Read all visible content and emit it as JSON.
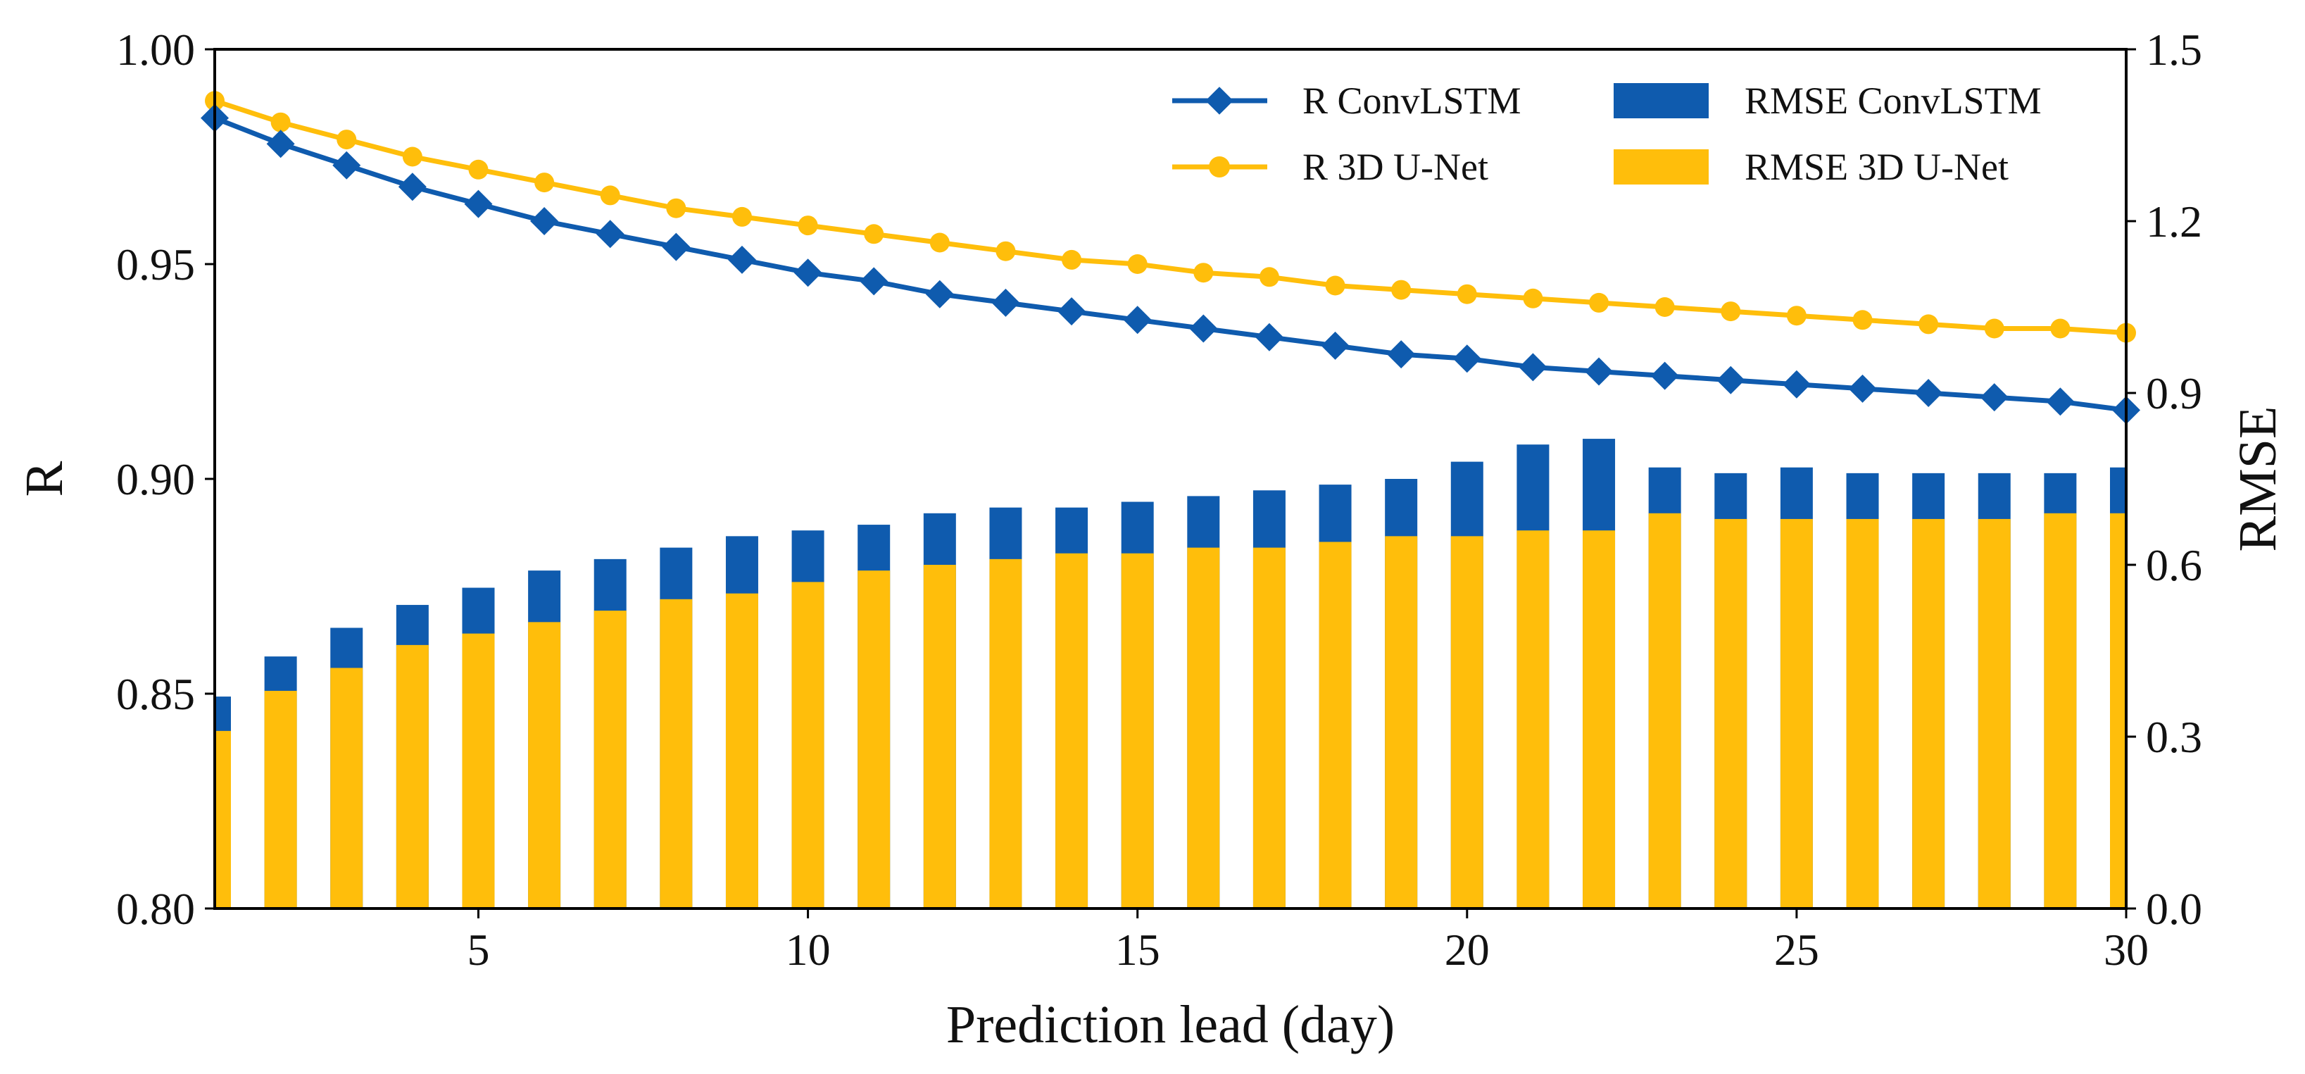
{
  "chart_data": {
    "type": "bar+line",
    "title": "",
    "xlabel": "Prediction lead (day)",
    "ylabel_left": "R",
    "ylabel_right": "RMSE",
    "x": [
      1,
      2,
      3,
      4,
      5,
      6,
      7,
      8,
      9,
      10,
      11,
      12,
      13,
      14,
      15,
      16,
      17,
      18,
      19,
      20,
      21,
      22,
      23,
      24,
      25,
      26,
      27,
      28,
      29,
      30
    ],
    "xlim": [
      1,
      30
    ],
    "xticks": [
      5,
      10,
      15,
      20,
      25,
      30
    ],
    "ylim_left": [
      0.8,
      1.0
    ],
    "yticks_left": [
      0.8,
      0.85,
      0.9,
      0.95,
      1.0
    ],
    "ytick_labels_left": [
      "0.80",
      "0.85",
      "0.90",
      "0.95",
      "1.00"
    ],
    "ylim_right": [
      0.0,
      1.5
    ],
    "yticks_right": [
      0.0,
      0.3,
      0.6,
      0.9,
      1.2,
      1.5
    ],
    "ytick_labels_right": [
      "0.0",
      "0.3",
      "0.6",
      "0.9",
      "1.2",
      "1.5"
    ],
    "legend_position": "top-right",
    "line_series": [
      {
        "name": "R ConvLSTM",
        "color": "#0F5BAE",
        "marker": "diamond",
        "axis": "left",
        "values": [
          0.984,
          0.978,
          0.973,
          0.968,
          0.964,
          0.96,
          0.957,
          0.954,
          0.951,
          0.948,
          0.946,
          0.943,
          0.941,
          0.939,
          0.937,
          0.935,
          0.933,
          0.931,
          0.929,
          0.928,
          0.926,
          0.925,
          0.924,
          0.923,
          0.922,
          0.921,
          0.92,
          0.919,
          0.918,
          0.916
        ]
      },
      {
        "name": "R 3D U-Net",
        "color": "#FFBE0B",
        "marker": "circle",
        "axis": "left",
        "values": [
          0.988,
          0.983,
          0.979,
          0.975,
          0.972,
          0.969,
          0.966,
          0.963,
          0.961,
          0.959,
          0.957,
          0.955,
          0.953,
          0.951,
          0.95,
          0.948,
          0.947,
          0.945,
          0.944,
          0.943,
          0.942,
          0.941,
          0.94,
          0.939,
          0.938,
          0.937,
          0.936,
          0.935,
          0.935,
          0.934
        ]
      }
    ],
    "bar_series": [
      {
        "name": "RMSE ConvLSTM",
        "color": "#0F5BAE",
        "axis": "right",
        "values": [
          0.37,
          0.44,
          0.49,
          0.53,
          0.56,
          0.59,
          0.61,
          0.63,
          0.65,
          0.66,
          0.67,
          0.69,
          0.7,
          0.7,
          0.71,
          0.72,
          0.73,
          0.74,
          0.75,
          0.78,
          0.81,
          0.82,
          0.77,
          0.76,
          0.77,
          0.76,
          0.76,
          0.76,
          0.76,
          0.77
        ]
      },
      {
        "name": "RMSE 3D U-Net",
        "color": "#FFBE0B",
        "axis": "right",
        "values": [
          0.31,
          0.38,
          0.42,
          0.46,
          0.48,
          0.5,
          0.52,
          0.54,
          0.55,
          0.57,
          0.59,
          0.6,
          0.61,
          0.62,
          0.62,
          0.63,
          0.63,
          0.64,
          0.65,
          0.65,
          0.66,
          0.66,
          0.69,
          0.68,
          0.68,
          0.68,
          0.68,
          0.68,
          0.69,
          0.69
        ]
      }
    ]
  }
}
